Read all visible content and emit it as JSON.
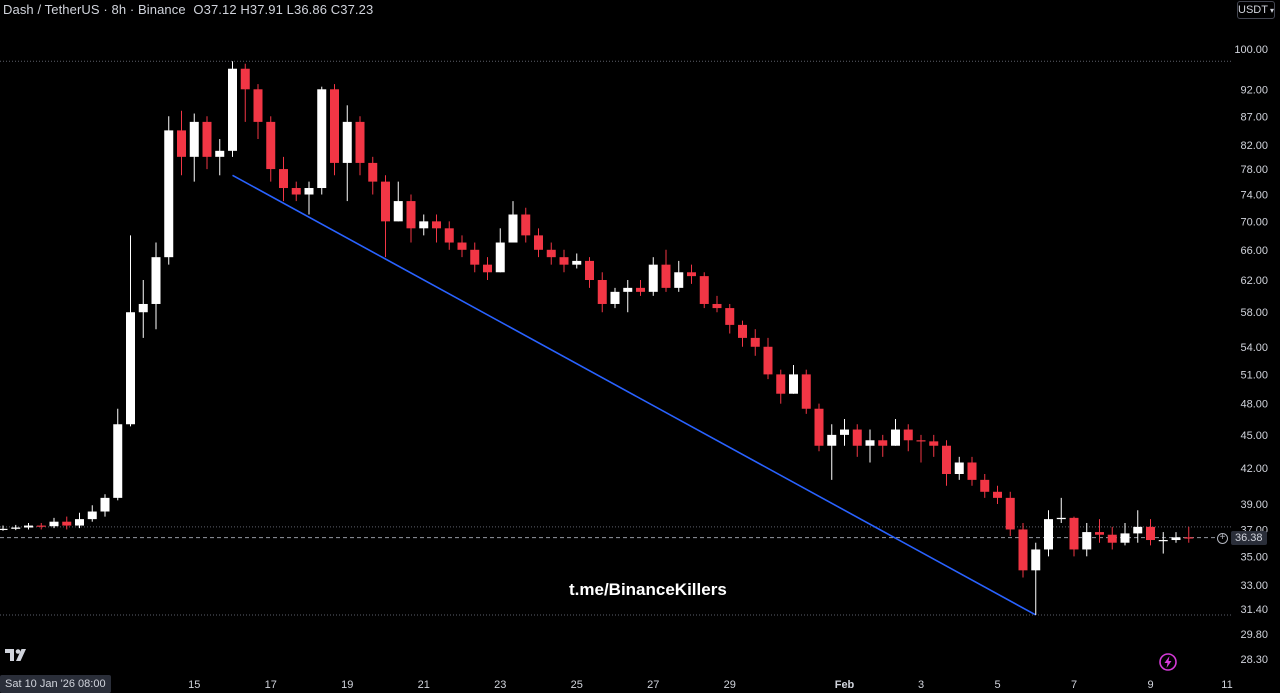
{
  "header": {
    "symbol": "Dash / TetherUS · 8h · Binance",
    "o_label": "O",
    "o_value": "37.12",
    "h_label": "H",
    "h_value": "37.91",
    "l_label": "L",
    "l_value": "36.86",
    "c_label": "C",
    "c_value": "37.23"
  },
  "currency_button": "USDT",
  "watermark": "t.me/BinanceKillers",
  "crosshair_date": "Sat 10 Jan '26   08:00",
  "crosshair_price": "36.38",
  "icons": [
    "tradingview-logo-icon",
    "lightning-icon",
    "plus-circle-icon",
    "chevron-down-icon"
  ],
  "colors": {
    "up": "#ffffff",
    "down": "#f23645",
    "trendline": "#2962ff",
    "background": "#000000"
  },
  "chart_data": {
    "type": "candlestick",
    "scale": "log",
    "y_ticks": [
      "100.00",
      "92.00",
      "87.00",
      "82.00",
      "78.00",
      "74.00",
      "70.00",
      "66.00",
      "62.00",
      "58.00",
      "54.00",
      "51.00",
      "48.00",
      "45.00",
      "42.00",
      "39.00",
      "37.00",
      "35.00",
      "33.00",
      "31.40",
      "29.80",
      "28.30"
    ],
    "y_tick_values": [
      100,
      92,
      87,
      82,
      78,
      74,
      70,
      66,
      62,
      58,
      54,
      51,
      48,
      45,
      42,
      39,
      37,
      35,
      33,
      31.4,
      29.8,
      28.3
    ],
    "x_ticks": [
      {
        "label": "15",
        "index": 15
      },
      {
        "label": "17",
        "index": 21
      },
      {
        "label": "19",
        "index": 27
      },
      {
        "label": "21",
        "index": 33
      },
      {
        "label": "23",
        "index": 39
      },
      {
        "label": "25",
        "index": 45
      },
      {
        "label": "27",
        "index": 51
      },
      {
        "label": "29",
        "index": 57
      },
      {
        "label": "Feb",
        "index": 66
      },
      {
        "label": "3",
        "index": 72
      },
      {
        "label": "5",
        "index": 78
      },
      {
        "label": "7",
        "index": 84
      },
      {
        "label": "9",
        "index": 90
      },
      {
        "label": "11",
        "index": 96
      }
    ],
    "h_reference_levels": [
      97.5,
      37.2,
      31.0
    ],
    "current_price_level": 36.38,
    "trendline": {
      "from": {
        "index": 18,
        "price": 77
      },
      "to": {
        "index": 81,
        "price": 31.0
      }
    },
    "candles": [
      [
        37.0,
        37.05,
        37.3,
        36.9
      ],
      [
        37.05,
        37.15,
        37.35,
        36.95
      ],
      [
        37.15,
        37.3,
        37.5,
        37.0
      ],
      [
        37.3,
        37.25,
        37.5,
        37.0
      ],
      [
        37.25,
        37.6,
        37.9,
        37.1
      ],
      [
        37.6,
        37.3,
        38.0,
        37.0
      ],
      [
        37.3,
        37.8,
        38.3,
        37.1
      ],
      [
        37.8,
        38.4,
        38.9,
        37.6
      ],
      [
        38.4,
        39.5,
        39.8,
        38.0
      ],
      [
        39.5,
        46.0,
        47.5,
        39.3
      ],
      [
        46.0,
        58.0,
        68.0,
        45.8
      ],
      [
        58.0,
        59.0,
        62.0,
        55.0
      ],
      [
        59.0,
        65.0,
        67.0,
        56.0
      ],
      [
        65.0,
        84.5,
        87.0,
        64.0
      ],
      [
        84.5,
        80.0,
        88.0,
        77.0
      ],
      [
        80.0,
        86.0,
        87.5,
        76.0
      ],
      [
        86.0,
        80.0,
        87.0,
        78.0
      ],
      [
        80.0,
        81.0,
        83.0,
        77.0
      ],
      [
        81.0,
        96.0,
        97.5,
        80.0
      ],
      [
        96.0,
        92.0,
        97.0,
        86.0
      ],
      [
        92.0,
        86.0,
        93.0,
        83.0
      ],
      [
        86.0,
        78.0,
        87.0,
        76.0
      ],
      [
        78.0,
        75.0,
        80.0,
        73.0
      ],
      [
        75.0,
        74.0,
        76.0,
        73.0
      ],
      [
        74.0,
        75.0,
        76.0,
        71.0
      ],
      [
        75.0,
        92.0,
        92.5,
        74.0
      ],
      [
        92.0,
        79.0,
        93.0,
        77.0
      ],
      [
        79.0,
        86.0,
        89.0,
        73.0
      ],
      [
        86.0,
        79.0,
        87.0,
        77.0
      ],
      [
        79.0,
        76.0,
        80.0,
        74.0
      ],
      [
        76.0,
        70.0,
        77.0,
        65.0
      ],
      [
        70.0,
        73.0,
        76.0,
        70.0
      ],
      [
        73.0,
        69.0,
        74.0,
        67.0
      ],
      [
        69.0,
        70.0,
        71.0,
        68.0
      ],
      [
        70.0,
        69.0,
        71.0,
        67.0
      ],
      [
        69.0,
        67.0,
        70.0,
        66.0
      ],
      [
        67.0,
        66.0,
        68.0,
        65.0
      ],
      [
        66.0,
        64.0,
        67.0,
        63.0
      ],
      [
        64.0,
        63.0,
        65.0,
        62.0
      ],
      [
        63.0,
        67.0,
        69.0,
        63.0
      ],
      [
        67.0,
        71.0,
        73.0,
        67.0
      ],
      [
        71.0,
        68.0,
        72.0,
        67.0
      ],
      [
        68.0,
        66.0,
        69.0,
        65.0
      ],
      [
        66.0,
        65.0,
        67.0,
        64.0
      ],
      [
        65.0,
        64.0,
        66.0,
        63.0
      ],
      [
        64.0,
        64.5,
        65.5,
        63.5
      ],
      [
        64.5,
        62.0,
        65.0,
        61.0
      ],
      [
        62.0,
        59.0,
        63.0,
        58.0
      ],
      [
        59.0,
        60.5,
        61.0,
        58.5
      ],
      [
        60.5,
        61.0,
        62.0,
        58.0
      ],
      [
        61.0,
        60.5,
        62.0,
        60.0
      ],
      [
        60.5,
        64.0,
        65.0,
        60.0
      ],
      [
        64.0,
        61.0,
        66.0,
        60.5
      ],
      [
        61.0,
        63.0,
        64.5,
        60.5
      ],
      [
        63.0,
        62.5,
        64.0,
        61.5
      ],
      [
        62.5,
        59.0,
        63.0,
        58.5
      ],
      [
        59.0,
        58.5,
        60.0,
        58.0
      ],
      [
        58.5,
        56.5,
        59.0,
        55.5
      ],
      [
        56.5,
        55.0,
        57.0,
        54.0
      ],
      [
        55.0,
        54.0,
        56.0,
        53.0
      ],
      [
        54.0,
        51.0,
        55.0,
        50.5
      ],
      [
        51.0,
        49.0,
        51.5,
        48.0
      ],
      [
        49.0,
        51.0,
        52.0,
        49.0
      ],
      [
        51.0,
        47.5,
        51.5,
        47.0
      ],
      [
        47.5,
        44.0,
        48.0,
        43.5
      ],
      [
        44.0,
        45.0,
        46.0,
        41.0
      ],
      [
        45.0,
        45.5,
        46.5,
        44.0
      ],
      [
        45.5,
        44.0,
        46.0,
        43.0
      ],
      [
        44.0,
        44.5,
        45.5,
        42.5
      ],
      [
        44.5,
        44.0,
        45.0,
        43.0
      ],
      [
        44.0,
        45.5,
        46.5,
        44.0
      ],
      [
        45.5,
        44.5,
        46.0,
        43.5
      ],
      [
        44.5,
        44.4,
        45.0,
        42.5
      ],
      [
        44.4,
        44.0,
        45.0,
        43.0
      ],
      [
        44.0,
        41.5,
        44.5,
        40.5
      ],
      [
        41.5,
        42.5,
        43.0,
        41.0
      ],
      [
        42.5,
        41.0,
        43.0,
        40.5
      ],
      [
        41.0,
        40.0,
        41.5,
        39.5
      ],
      [
        40.0,
        39.5,
        40.5,
        39.0
      ],
      [
        39.5,
        37.0,
        40.0,
        36.5
      ],
      [
        37.0,
        34.0,
        37.5,
        33.5
      ],
      [
        34.0,
        35.5,
        36.0,
        31.0
      ],
      [
        35.5,
        37.8,
        38.5,
        35.0
      ],
      [
        37.8,
        37.9,
        39.5,
        37.5
      ],
      [
        37.9,
        35.5,
        38.0,
        35.0
      ],
      [
        35.5,
        36.8,
        37.5,
        35.0
      ],
      [
        36.8,
        36.6,
        37.8,
        36.0
      ],
      [
        36.6,
        36.0,
        37.2,
        35.5
      ],
      [
        36.0,
        36.7,
        37.5,
        35.8
      ],
      [
        36.7,
        37.2,
        38.5,
        36.0
      ],
      [
        37.2,
        36.2,
        37.8,
        35.8
      ],
      [
        36.2,
        36.2,
        36.8,
        35.2
      ],
      [
        36.2,
        36.4,
        36.8,
        36.0
      ],
      [
        36.4,
        36.38,
        37.2,
        36.0
      ]
    ]
  }
}
